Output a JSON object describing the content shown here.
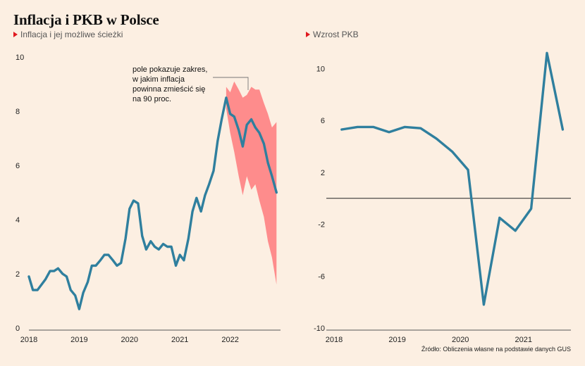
{
  "title": "Inflacja i PKB w Polsce",
  "subtitle_left": "Inflacja i jej możliwe ścieżki",
  "subtitle_right": "Wzrost PKB",
  "source": "Źródło: Obliczenia własne na podstawie danych GUS",
  "colors": {
    "line": "#2f7f9e",
    "band": "#fe8c8c",
    "accent_triangle": "#e0191f",
    "background": "#fcefe2"
  },
  "chart_data": [
    {
      "type": "line",
      "subtitle": "Inflacja i jej możliwe ścieżki",
      "x_ticks": [
        "2018",
        "2019",
        "2020",
        "2021",
        "2022"
      ],
      "y_ticks": [
        "0",
        "2",
        "4",
        "6",
        "8",
        "10"
      ],
      "xlim": [
        2018.0,
        2023.0
      ],
      "ylim": [
        0,
        10
      ],
      "grid": false,
      "annotation": [
        "pole pokazuje zakres,",
        "w jakim inflacja",
        "powinna zmieścić się",
        "na 90 proc."
      ],
      "series": [
        {
          "values_x": [
            2018.0,
            2018.08,
            2018.17,
            2018.25,
            2018.33,
            2018.42,
            2018.5,
            2018.58,
            2018.67,
            2018.75,
            2018.83,
            2018.92,
            2019.0,
            2019.08,
            2019.17,
            2019.25,
            2019.33,
            2019.42,
            2019.5,
            2019.58,
            2019.67,
            2019.75,
            2019.83,
            2019.92,
            2020.0,
            2020.08,
            2020.17,
            2020.25,
            2020.33,
            2020.42,
            2020.5,
            2020.58,
            2020.67,
            2020.75,
            2020.83,
            2020.92,
            2021.0,
            2021.08,
            2021.17,
            2021.25,
            2021.33,
            2021.42,
            2021.5,
            2021.58,
            2021.67,
            2021.75,
            2021.83,
            2021.92,
            2022.0,
            2022.08,
            2022.17,
            2022.25,
            2022.33,
            2022.42,
            2022.5,
            2022.58,
            2022.67,
            2022.75,
            2022.83,
            2022.92
          ],
          "values_y": [
            1.9,
            1.4,
            1.4,
            1.6,
            1.8,
            2.1,
            2.1,
            2.2,
            2.0,
            1.9,
            1.4,
            1.2,
            0.7,
            1.3,
            1.7,
            2.3,
            2.3,
            2.5,
            2.7,
            2.7,
            2.5,
            2.3,
            2.4,
            3.3,
            4.4,
            4.7,
            4.6,
            3.4,
            2.9,
            3.2,
            3.0,
            2.9,
            3.1,
            3.0,
            3.0,
            2.3,
            2.7,
            2.5,
            3.3,
            4.3,
            4.8,
            4.3,
            4.9,
            5.3,
            5.8,
            6.9,
            7.7,
            8.5,
            7.9,
            7.8,
            7.3,
            6.7,
            7.5,
            7.7,
            7.4,
            7.2,
            6.8,
            6.1,
            5.6,
            5.0
          ]
        }
      ],
      "band": {
        "x": [
          2021.92,
          2022.0,
          2022.08,
          2022.17,
          2022.25,
          2022.33,
          2022.42,
          2022.5,
          2022.58,
          2022.67,
          2022.75,
          2022.83,
          2022.92
        ],
        "upper": [
          8.9,
          8.7,
          9.1,
          8.8,
          8.5,
          8.6,
          8.9,
          8.8,
          8.8,
          8.3,
          7.9,
          7.4,
          7.6
        ],
        "lower": [
          8.1,
          7.2,
          6.5,
          5.6,
          4.9,
          5.6,
          5.1,
          5.3,
          4.7,
          4.1,
          3.2,
          2.6,
          1.6
        ]
      }
    },
    {
      "type": "line",
      "subtitle": "Wzrost PKB",
      "x_ticks": [
        "2018",
        "2019",
        "2020",
        "2021"
      ],
      "y_ticks": [
        "-10",
        "-6",
        "-2",
        "2",
        "6",
        "10"
      ],
      "xlim": [
        2018.0,
        2021.75
      ],
      "ylim": [
        -10,
        11
      ],
      "zero_line": true,
      "grid": false,
      "series": [
        {
          "values_x": [
            2018.12,
            2018.37,
            2018.62,
            2018.87,
            2019.12,
            2019.37,
            2019.62,
            2019.87,
            2020.12,
            2020.37,
            2020.62,
            2020.87,
            2021.12,
            2021.37,
            2021.62
          ],
          "values_y": [
            5.3,
            5.5,
            5.5,
            5.1,
            5.5,
            5.4,
            4.6,
            3.6,
            2.2,
            -8.2,
            -1.5,
            -2.5,
            -0.8,
            11.2,
            5.3
          ]
        }
      ]
    }
  ]
}
